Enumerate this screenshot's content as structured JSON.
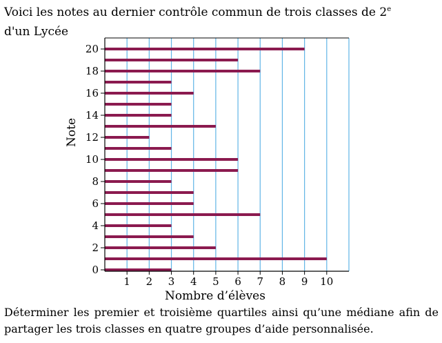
{
  "intro": {
    "text": "Voici les notes au dernier contrôle commun de trois classes de 2",
    "superscript": "e",
    "line2": "d'un Lycée"
  },
  "question": {
    "text": "Déterminer les premier et troisième quartiles ainsi qu’une médiane afin de partager les trois classes en quatre groupes d’aide personnalisée."
  },
  "chart_data": {
    "type": "bar",
    "orientation": "horizontal",
    "xlabel": "Nombre d’élèves",
    "ylabel": "Note",
    "xlim": [
      0,
      11
    ],
    "ylim": [
      0,
      20
    ],
    "x_ticks": [
      1,
      2,
      3,
      4,
      5,
      6,
      7,
      8,
      9,
      10
    ],
    "y_ticks": [
      0,
      2,
      4,
      6,
      8,
      10,
      12,
      14,
      16,
      18,
      20
    ],
    "grid": "vertical",
    "categories": [
      0,
      1,
      2,
      3,
      4,
      5,
      6,
      7,
      8,
      9,
      10,
      11,
      12,
      13,
      14,
      15,
      16,
      17,
      18,
      19,
      20
    ],
    "values": [
      3,
      10,
      5,
      4,
      3,
      7,
      4,
      4,
      3,
      6,
      6,
      3,
      2,
      5,
      3,
      3,
      4,
      3,
      7,
      6,
      9
    ],
    "colors": {
      "bar": "#8b1a4f",
      "grid": "#5fb4e6",
      "axis": "#000000"
    }
  }
}
